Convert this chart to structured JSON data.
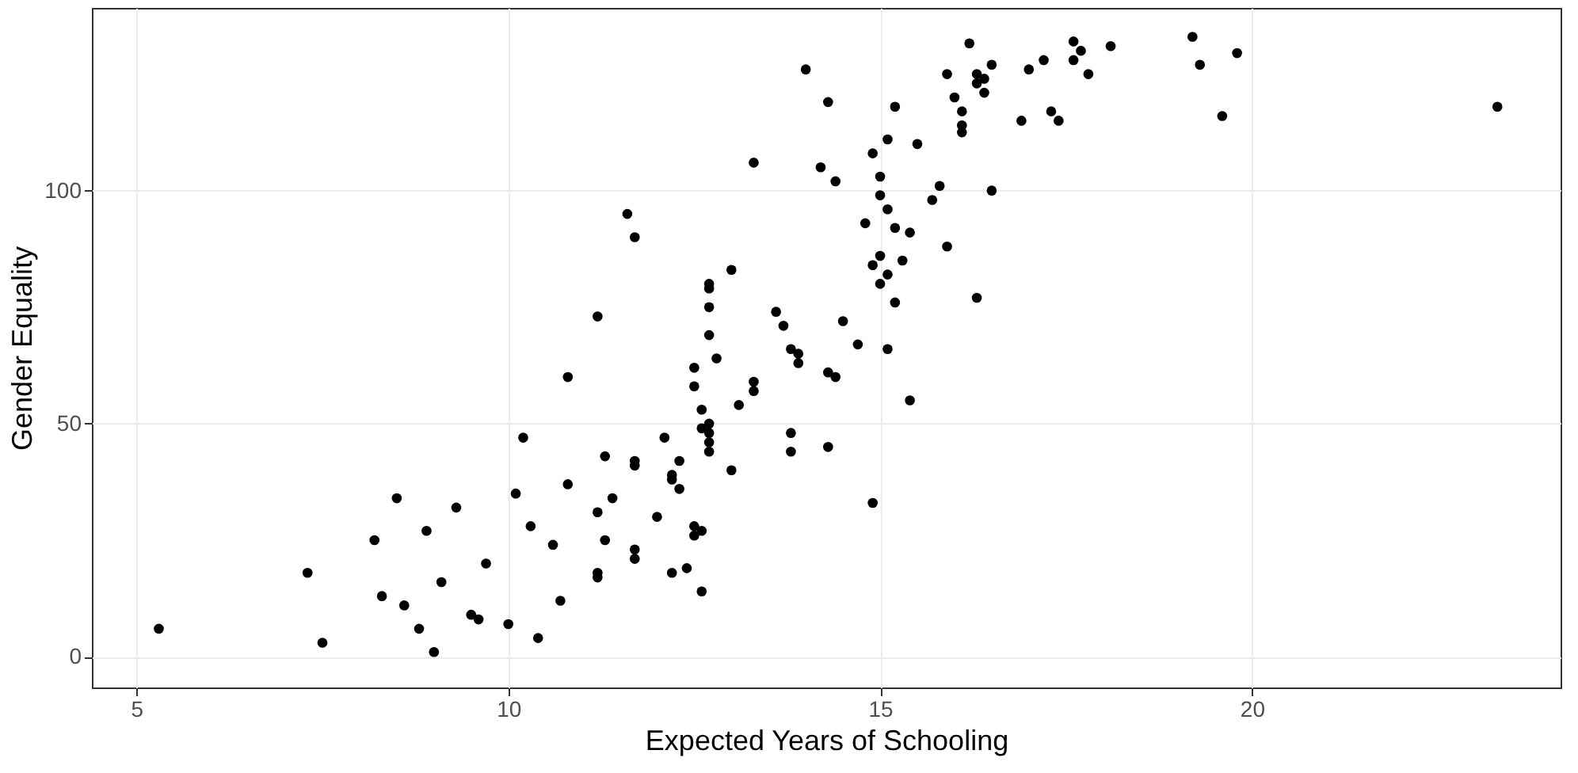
{
  "chart_data": {
    "type": "scatter",
    "xlabel": "Expected Years of Schooling",
    "ylabel": "Gender Equality",
    "color": "#000000",
    "marker": "circle",
    "grid": true,
    "xlim": [
      4.4,
      24.15
    ],
    "ylim": [
      -6.6,
      139.2
    ],
    "xticks": [
      5,
      10,
      15,
      20
    ],
    "yticks": [
      0,
      50,
      100
    ],
    "x": [
      5.3,
      7.3,
      7.5,
      8.2,
      8.5,
      8.3,
      8.9,
      8.6,
      8.8,
      9.0,
      9.1,
      9.3,
      9.7,
      9.5,
      9.6,
      10.0,
      10.1,
      10.2,
      10.3,
      10.6,
      10.4,
      10.8,
      10.7,
      10.8,
      11.2,
      11.2,
      11.2,
      11.2,
      11.3,
      11.3,
      11.4,
      11.6,
      11.7,
      11.7,
      11.7,
      11.7,
      11.7,
      12.0,
      12.1,
      12.2,
      12.2,
      12.2,
      12.3,
      12.3,
      12.4,
      12.5,
      12.6,
      12.5,
      12.5,
      12.5,
      12.6,
      12.6,
      12.6,
      12.7,
      12.7,
      12.7,
      12.7,
      12.7,
      12.7,
      12.7,
      12.7,
      12.8,
      13.0,
      13.0,
      13.1,
      13.3,
      13.3,
      13.3,
      13.6,
      13.7,
      13.8,
      13.9,
      13.9,
      13.8,
      13.8,
      14.0,
      14.2,
      14.3,
      14.3,
      14.3,
      14.4,
      14.4,
      14.5,
      14.7,
      14.8,
      14.9,
      14.9,
      14.9,
      15.0,
      15.0,
      15.0,
      15.0,
      15.1,
      15.1,
      15.1,
      15.1,
      15.2,
      15.2,
      15.2,
      15.3,
      15.4,
      15.4,
      15.5,
      15.7,
      15.8,
      15.9,
      15.9,
      16.0,
      16.1,
      16.1,
      16.1,
      16.2,
      16.3,
      16.3,
      16.3,
      16.4,
      16.4,
      16.5,
      16.5,
      16.9,
      17.0,
      17.2,
      17.3,
      17.4,
      17.6,
      17.6,
      17.7,
      17.8,
      18.1,
      19.2,
      19.3,
      19.6,
      19.8,
      23.3
    ],
    "values": [
      6,
      18,
      3,
      25,
      34,
      13,
      27,
      11,
      6,
      1,
      16,
      32,
      20,
      9,
      8,
      7,
      35,
      47,
      28,
      24,
      4,
      37,
      12,
      60,
      73,
      31,
      18,
      17,
      43,
      25,
      34,
      95,
      90,
      42,
      41,
      23,
      21,
      30,
      47,
      39,
      38,
      18,
      42,
      36,
      19,
      28,
      27,
      26,
      62,
      58,
      14,
      53,
      49,
      80,
      79,
      75,
      69,
      50,
      48,
      46,
      44,
      64,
      83,
      40,
      54,
      106,
      59,
      57,
      74,
      71,
      66,
      65,
      63,
      48,
      44,
      126,
      105,
      119,
      61,
      45,
      60,
      102,
      72,
      67,
      93,
      108,
      84,
      33,
      103,
      99,
      86,
      80,
      111,
      96,
      82,
      66,
      118,
      92,
      76,
      85,
      91,
      55,
      110,
      98,
      101,
      125,
      88,
      120,
      117,
      114,
      112.5,
      131.6,
      125,
      123,
      77,
      124,
      121,
      127,
      100,
      115,
      126,
      128,
      117,
      115,
      132,
      128,
      130,
      125,
      131,
      133,
      127,
      116,
      129.5,
      118
    ]
  }
}
